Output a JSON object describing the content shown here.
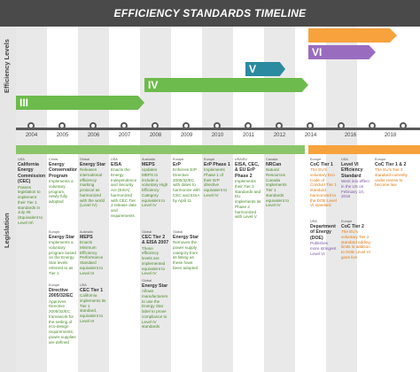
{
  "title": "EFFICIENCY STANDARDS TIMELINE",
  "side_labels": {
    "efficiency": "Efficiency Levels",
    "legislation": "Legislation"
  },
  "years": [
    "2004",
    "2005",
    "2006",
    "2007",
    "2008",
    "2009",
    "2010",
    "2011",
    "2012",
    "2014",
    "2016",
    "2018"
  ],
  "levels": [
    {
      "num": "III",
      "color": "#6dbb4c"
    },
    {
      "num": "IV",
      "color": "#6dbb4c"
    },
    {
      "num": "V",
      "color": "#2a8aa0"
    },
    {
      "num": "VI",
      "color": "#9a6cc0"
    },
    {
      "num": "",
      "color": "#f7a23c"
    }
  ],
  "cards": [
    {
      "region": "USA",
      "name": "California Energy Commission (CEC)",
      "body": "Passes legislation to implement their Tier 1 standards in July 06 (Equivalent to Level III)"
    },
    {
      "region": "China",
      "name": "Energy Conservation Program",
      "body": "Implements a voluntary program, newly fully adopted"
    },
    {
      "region": "Global",
      "name": "Energy Star",
      "body": "Releases international efficiency marking protocol as harmonized with the world (Level IV)"
    },
    {
      "region": "USA",
      "name": "EISA",
      "body": "Enacts the Energy Independence and Security Act (EISA) harmonized with CEC Tier 2 release date and requirements"
    },
    {
      "region": "Australia",
      "name": "MEPS",
      "body": "Updates MEPS to include a voluntary High Efficiency Category equivalent to Level IV"
    },
    {
      "region": "Europe",
      "name": "ErP",
      "body": "Enforces ErP Directive 2005/32/EC with dates to harmonize with CEC and EISA by April 11"
    },
    {
      "region": "Europe",
      "name": "ErP Phase 1",
      "body": "Implements Phase 1 of their ErP directive equivalent to Level IV"
    },
    {
      "region": "USA/EU",
      "name": "EISA, CEC, & EU ErP Phase 2",
      "body": "Implements their Tier 3 standards and EU implements its Phase 2 harmonized with Level V"
    },
    {
      "region": "Canada",
      "name": "NRCan",
      "body": "Natural Resources Canada implements Tier 1 standards equivalent to Level IV"
    },
    {
      "region": "Europe",
      "name": "CoC Tier 1",
      "body": "The EU's voluntary Eco Code of Conduct Tier 1 standard harmonized to the DOE Level VI standard"
    },
    {
      "region": "USA",
      "name": "Level VI Efficiency Standard",
      "body": "Went into effect in the US on February 10, 2016"
    },
    {
      "region": "Europe",
      "name": "CoC Tier 1 & 2",
      "body": "The EU's Tier 2 standard currently under review to become law"
    },
    {
      "region": "Europe",
      "name": "Energy Star",
      "body": "Implements a voluntary program based on the Energy Star levels referred to as Tier 1"
    },
    {
      "region": "Australia",
      "name": "MEPS",
      "body": "Enacts Minimum Efficiency Performance Standard equivalent to Level III"
    },
    {
      "region": "Global",
      "name": "CEC Tier 2 & EISA 2007",
      "body": "These efficiency levels are implemented equivalent to Level IV"
    },
    {
      "region": "Global",
      "name": "Energy Star",
      "body": "Removes the power supply category from its listing as these have been adopted"
    },
    {
      "region": "USA",
      "name": "Department of Energy (DOE)",
      "body": "Publishes more stringent Level VI"
    },
    {
      "region": "Europe",
      "name": "CoC Tier 2",
      "body": "The EU's voluntary Tier 2 standard adding limits in addition to DOE Level VI goes live"
    },
    {
      "region": "Europe",
      "name": "Directive 2005/32/EC",
      "body": "Approves Directive 2005/32/EC framework for the setting of eco-design requirements; power supplies are defined"
    },
    {
      "region": "USA",
      "name": "CEC Tier 1",
      "body": "California implements its Tier 1 standard, equivalent to Level III"
    },
    {
      "region": "Global",
      "name": "Energy Star",
      "body": "Allows manufacturers to use the Energy Star label to prove compliance to Level IV standards"
    }
  ]
}
